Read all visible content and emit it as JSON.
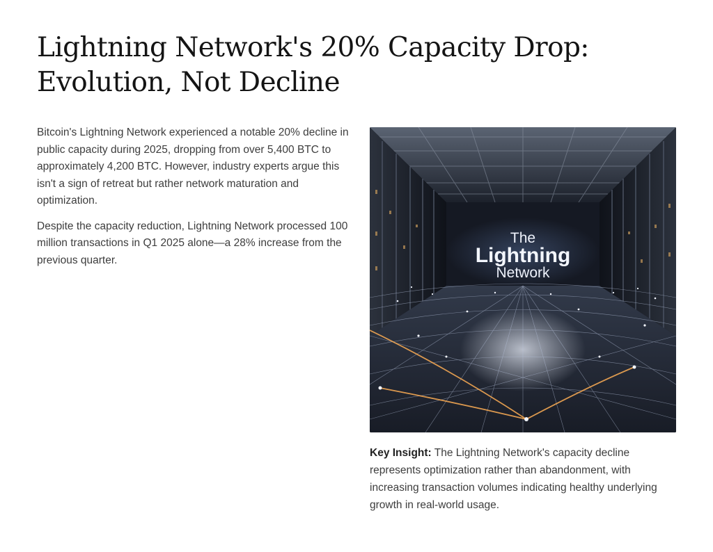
{
  "article": {
    "title_line1": "Lightning Network's 20% Capacity Drop:",
    "title_line2": "Evolution, Not Decline",
    "paragraph1": "Bitcoin's Lightning Network experienced a notable 20% decline in public capacity during 2025, dropping from over 5,400 BTC to approximately 4,200 BTC. However, industry experts argue this isn't a sign of retreat but rather network maturation and optimization.",
    "paragraph2": "Despite the capacity reduction, Lightning Network processed 100 million transactions in Q1 2025 alone—a 28% increase from the previous quarter."
  },
  "image": {
    "text_the": "The",
    "text_lightning": "Lightning",
    "text_network": "Network"
  },
  "insight": {
    "label": "Key Insight:",
    "text": " The Lightning Network's capacity decline represents optimization rather than abandonment, with increasing transaction volumes indicating healthy underlying growth in real-world usage."
  }
}
